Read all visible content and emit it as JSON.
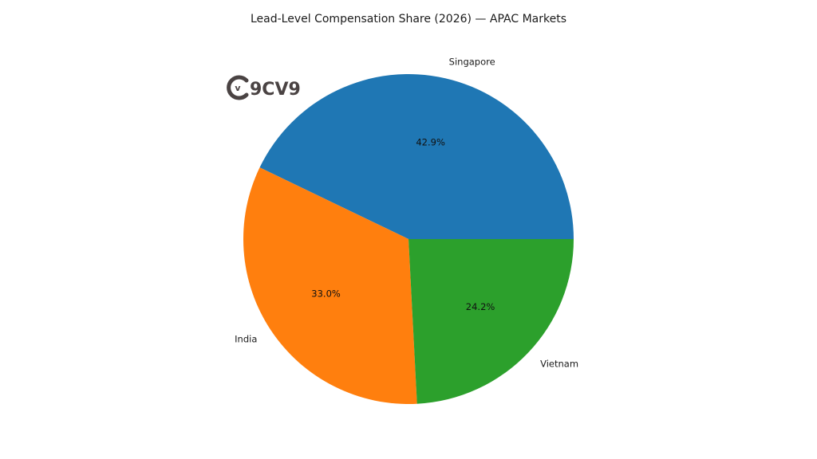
{
  "watermark": {
    "logo_text": "9CV9",
    "logo_mark": "v",
    "color": "#4a4343"
  },
  "chart_data": {
    "type": "pie",
    "title": "Lead-Level Compensation Share (2026) — APAC Markets",
    "start_angle_deg": 0,
    "direction": "counterclockwise",
    "slices": [
      {
        "label": "Singapore",
        "value": 42.9,
        "pct_label": "42.9%",
        "color": "#1f77b4"
      },
      {
        "label": "India",
        "value": 33.0,
        "pct_label": "33.0%",
        "color": "#ff7f0e"
      },
      {
        "label": "Vietnam",
        "value": 24.2,
        "pct_label": "24.2%",
        "color": "#2ca02c"
      }
    ]
  }
}
